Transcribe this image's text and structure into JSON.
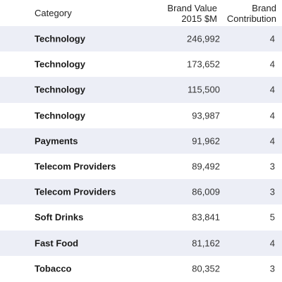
{
  "header": {
    "category": "Category",
    "brand_value_line1": "Brand Value",
    "brand_value_line2": "2015 $M",
    "contribution_line1": "Brand",
    "contribution_line2": "Contribution"
  },
  "rows": [
    {
      "category": "Technology",
      "value": "246,992",
      "contribution": "4"
    },
    {
      "category": "Technology",
      "value": "173,652",
      "contribution": "4"
    },
    {
      "category": "Technology",
      "value": "115,500",
      "contribution": "4"
    },
    {
      "category": "Technology",
      "value": "93,987",
      "contribution": "4"
    },
    {
      "category": "Payments",
      "value": "91,962",
      "contribution": "4"
    },
    {
      "category": "Telecom Providers",
      "value": "89,492",
      "contribution": "3"
    },
    {
      "category": "Telecom Providers",
      "value": "86,009",
      "contribution": "3"
    },
    {
      "category": "Soft Drinks",
      "value": "83,841",
      "contribution": "5"
    },
    {
      "category": "Fast Food",
      "value": "81,162",
      "contribution": "4"
    },
    {
      "category": "Tobacco",
      "value": "80,352",
      "contribution": "3"
    }
  ],
  "colors": {
    "shaded_row": "#eceef6",
    "plain_row": "#ffffff"
  }
}
